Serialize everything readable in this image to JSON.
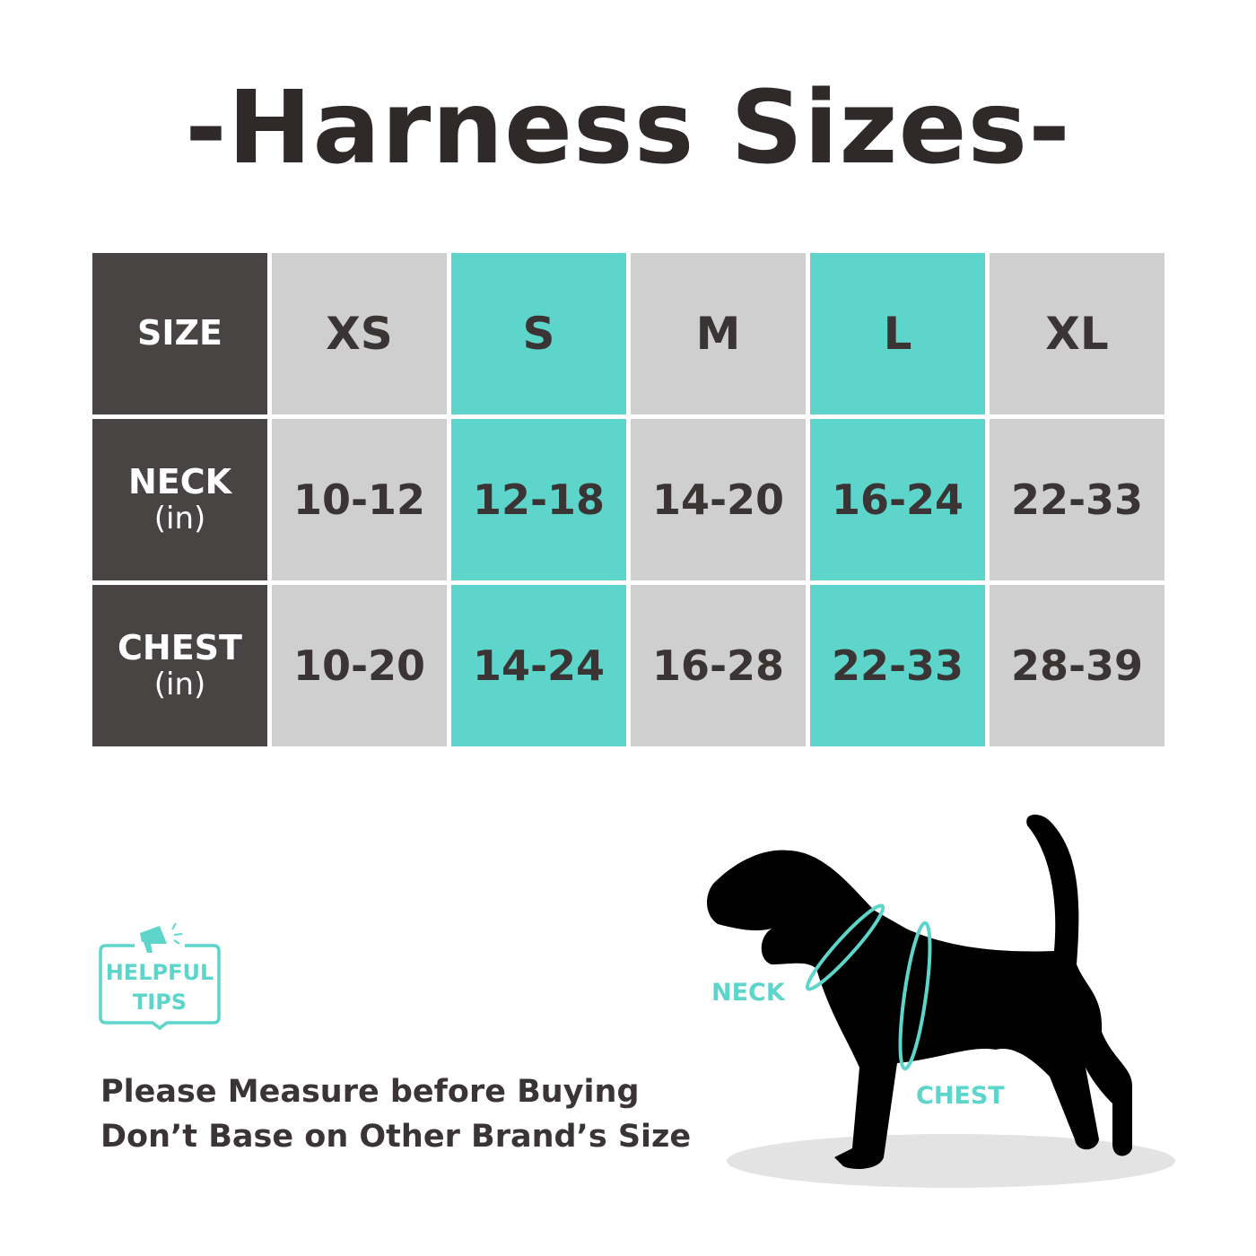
{
  "title": "-Harness Sizes-",
  "table": {
    "header_label": "SIZE",
    "sizes": [
      "XS",
      "S",
      "M",
      "L",
      "XL"
    ],
    "rows": [
      {
        "label": "NECK",
        "unit": "(in)",
        "values": [
          "10-12",
          "12-18",
          "14-20",
          "16-24",
          "22-33"
        ]
      },
      {
        "label": "CHEST",
        "unit": "(in)",
        "values": [
          "10-20",
          "14-24",
          "16-28",
          "22-33",
          "28-39"
        ]
      }
    ]
  },
  "colors": {
    "header": "#474443",
    "grey": "#cfcfcf",
    "teal": "#5dd5cb",
    "text": "#3a3534"
  },
  "tips": {
    "line1": "HELPFUL",
    "line2": "TIPS",
    "icon": "megaphone-icon"
  },
  "note": {
    "line1": "Please Measure before Buying",
    "line2": "Don’t Base on Other Brand’s Size"
  },
  "diagram": {
    "neck_label": "NECK",
    "chest_label": "CHEST"
  }
}
